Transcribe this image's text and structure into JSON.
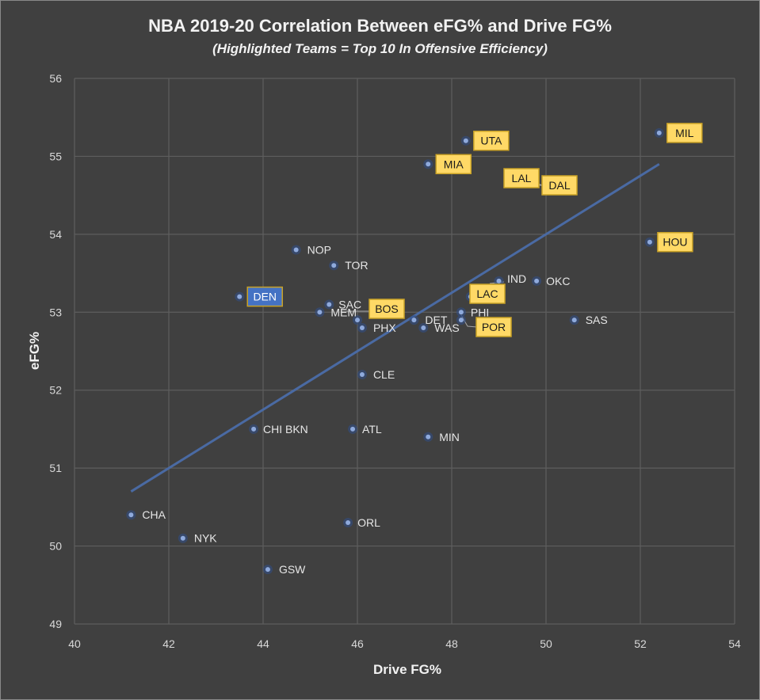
{
  "chart_data": {
    "type": "scatter",
    "title": "NBA 2019-20 Correlation Between eFG% and Drive FG%",
    "subtitle": "(Highlighted  Teams = Top 10 In Offensive Efficiency)",
    "xlabel": "Drive FG%",
    "ylabel": "eFG%",
    "xlim": [
      40,
      54
    ],
    "ylim": [
      49,
      56
    ],
    "x_ticks": [
      "40",
      "42",
      "44",
      "46",
      "48",
      "50",
      "52",
      "54"
    ],
    "y_ticks": [
      "49",
      "50",
      "51",
      "52",
      "53",
      "54",
      "55",
      "56"
    ],
    "grid": true,
    "legend": "none",
    "colors": {
      "background": "#404040",
      "grid": "#5e5e5e",
      "marker": "#8faadc",
      "trendline": "#4a6aa3",
      "highlight_fill": "#ffd966",
      "highlight_border": "#c9a227",
      "den_fill": "#4472c4",
      "den_border": "#c9a227"
    },
    "trendline": {
      "x": [
        41.2,
        52.4
      ],
      "y": [
        50.7,
        54.9
      ]
    },
    "points": [
      {
        "team": "MIL",
        "x": 52.4,
        "y": 55.3,
        "highlight": true
      },
      {
        "team": "UTA",
        "x": 48.3,
        "y": 55.2,
        "highlight": true
      },
      {
        "team": "MIA",
        "x": 47.5,
        "y": 54.9,
        "highlight": true
      },
      {
        "team": "LAL",
        "x": 49.7,
        "y": 54.6,
        "highlight": true
      },
      {
        "team": "DAL",
        "x": 49.7,
        "y": 54.6,
        "highlight": true
      },
      {
        "team": "HOU",
        "x": 52.2,
        "y": 53.9,
        "highlight": true
      },
      {
        "team": "NOP",
        "x": 44.7,
        "y": 53.8,
        "highlight": false
      },
      {
        "team": "TOR",
        "x": 45.5,
        "y": 53.6,
        "highlight": false
      },
      {
        "team": "IND",
        "x": 49.0,
        "y": 53.4,
        "highlight": false
      },
      {
        "team": "OKC",
        "x": 49.8,
        "y": 53.4,
        "highlight": false
      },
      {
        "team": "DEN",
        "x": 43.5,
        "y": 53.2,
        "highlight": true,
        "style": "blue"
      },
      {
        "team": "LAC",
        "x": 48.4,
        "y": 53.2,
        "highlight": true
      },
      {
        "team": "SAC",
        "x": 45.4,
        "y": 53.1,
        "highlight": false
      },
      {
        "team": "MEM",
        "x": 45.2,
        "y": 53.0,
        "highlight": false
      },
      {
        "team": "PHI",
        "x": 48.2,
        "y": 53.0,
        "highlight": false
      },
      {
        "team": "BOS",
        "x": 46.0,
        "y": 52.9,
        "highlight": true
      },
      {
        "team": "DET",
        "x": 47.2,
        "y": 52.9,
        "highlight": false
      },
      {
        "team": "POR",
        "x": 48.2,
        "y": 52.9,
        "highlight": true
      },
      {
        "team": "SAS",
        "x": 50.6,
        "y": 52.9,
        "highlight": false
      },
      {
        "team": "PHX",
        "x": 46.1,
        "y": 52.8,
        "highlight": false
      },
      {
        "team": "WAS",
        "x": 47.4,
        "y": 52.8,
        "highlight": false
      },
      {
        "team": "CLE",
        "x": 46.1,
        "y": 52.2,
        "highlight": false
      },
      {
        "team": "CHI",
        "x": 43.8,
        "y": 51.5,
        "highlight": false
      },
      {
        "team": "BKN",
        "x": 44.2,
        "y": 51.5,
        "highlight": false
      },
      {
        "team": "ATL",
        "x": 45.9,
        "y": 51.5,
        "highlight": false
      },
      {
        "team": "MIN",
        "x": 47.5,
        "y": 51.4,
        "highlight": false
      },
      {
        "team": "CHA",
        "x": 41.2,
        "y": 50.4,
        "highlight": false
      },
      {
        "team": "ORL",
        "x": 45.8,
        "y": 50.3,
        "highlight": false
      },
      {
        "team": "NYK",
        "x": 42.3,
        "y": 50.1,
        "highlight": false
      },
      {
        "team": "GSW",
        "x": 44.1,
        "y": 49.7,
        "highlight": false
      }
    ]
  }
}
